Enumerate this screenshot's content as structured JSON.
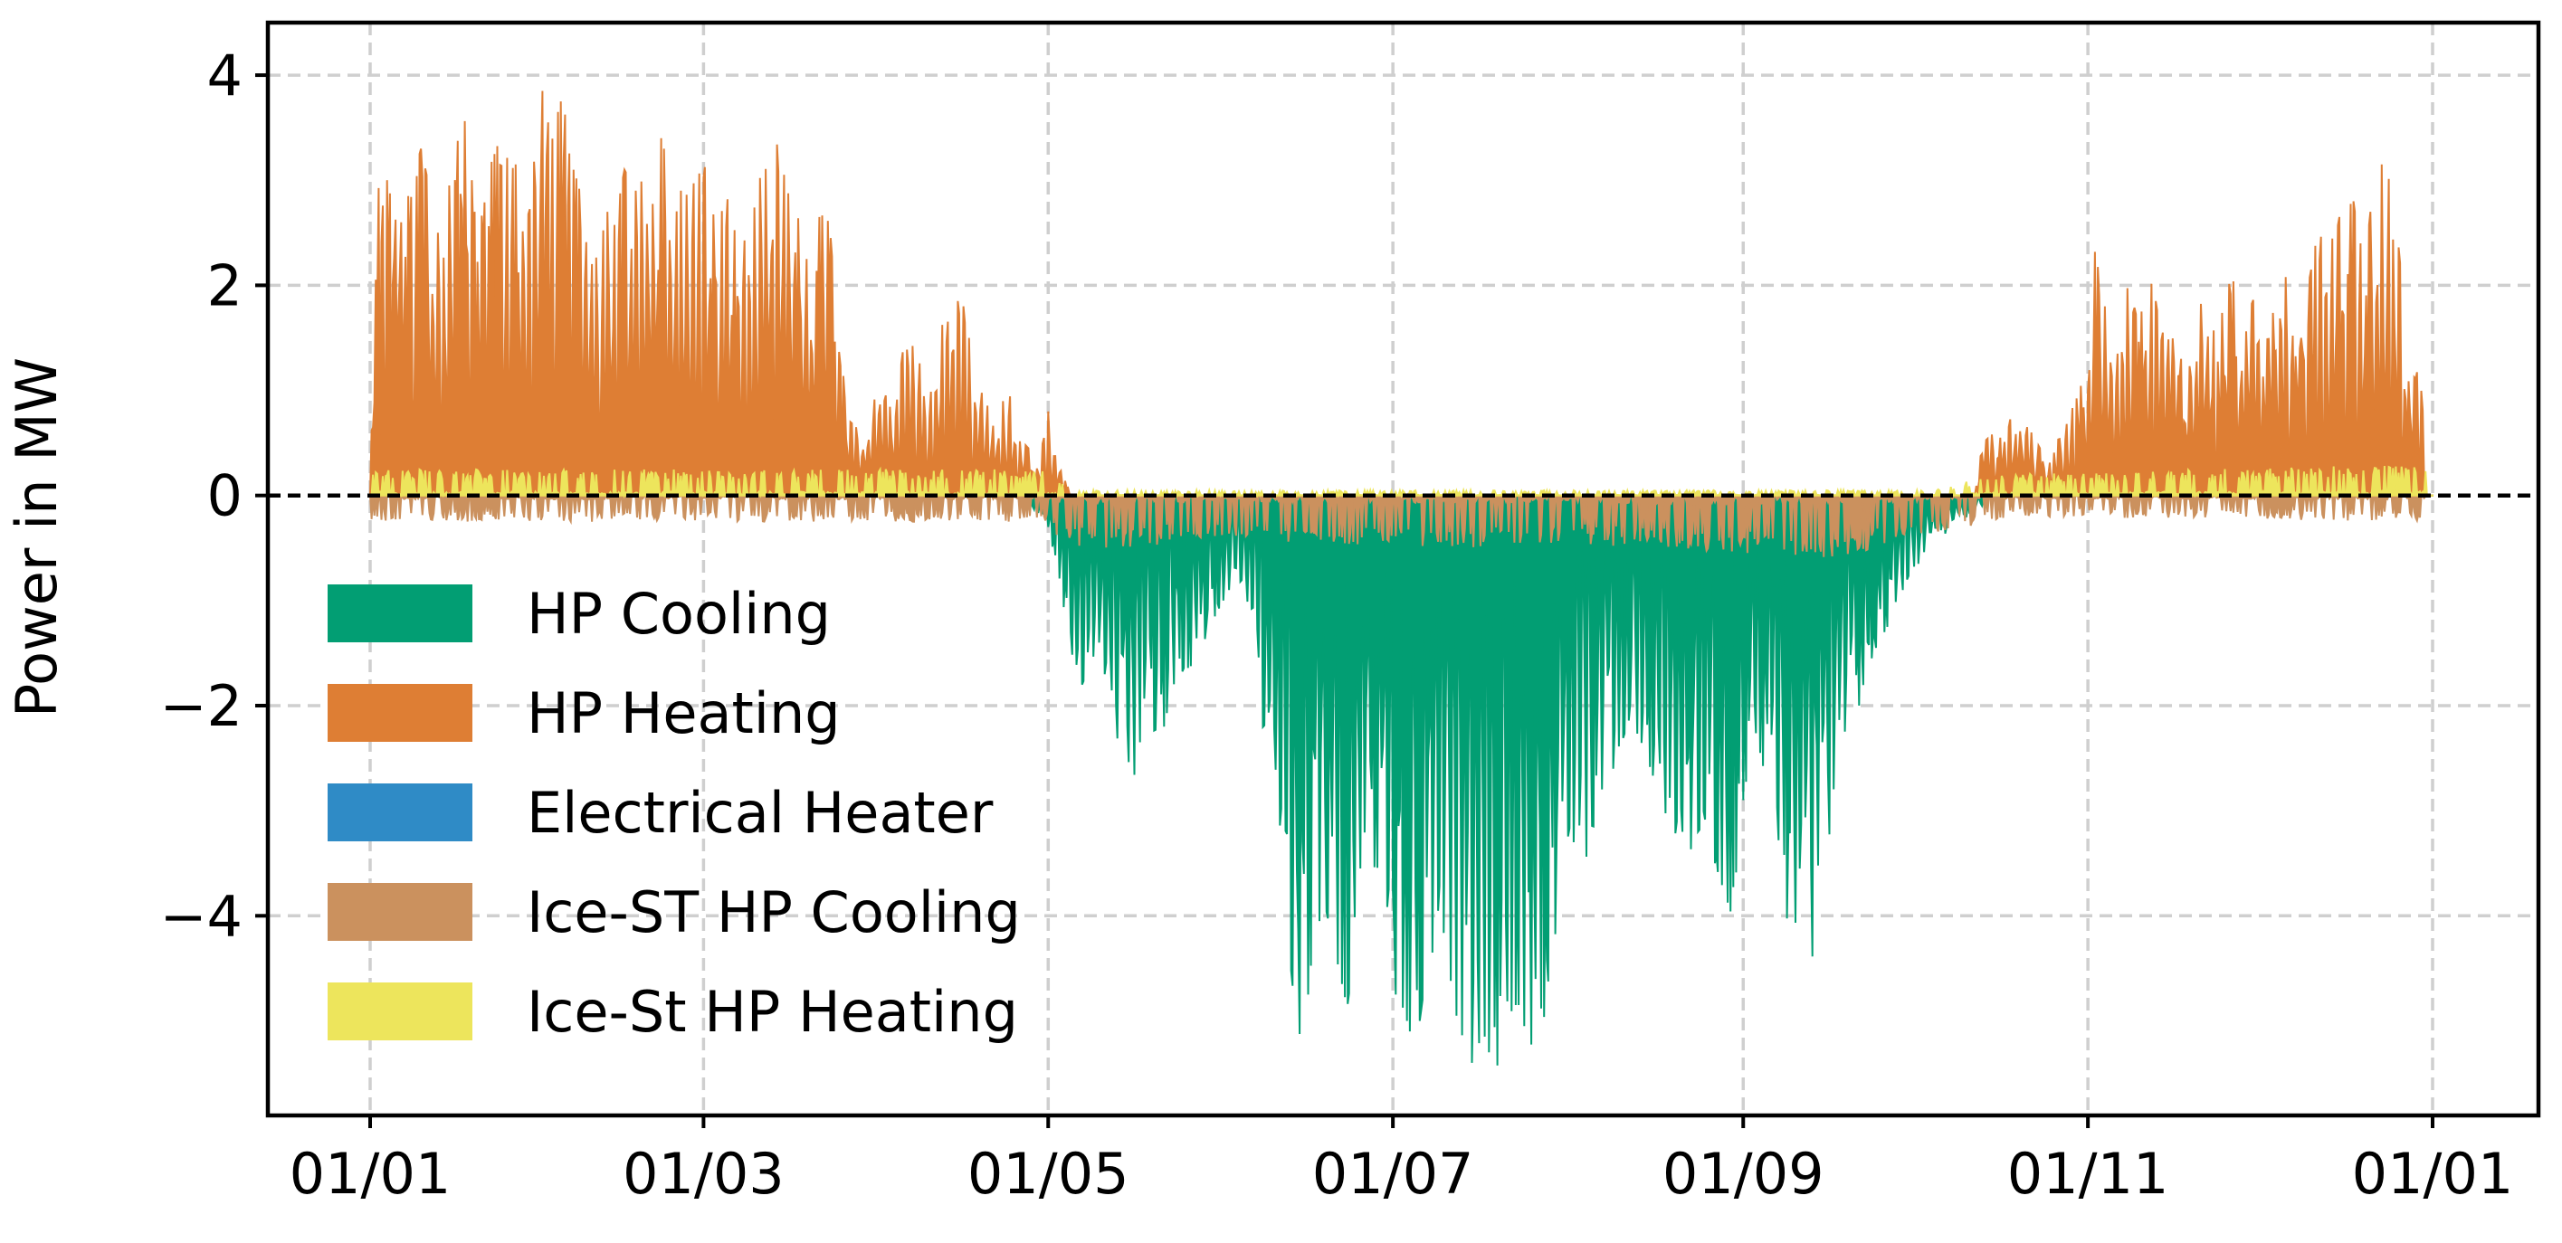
{
  "chart_data": {
    "type": "area",
    "xlabel": "",
    "ylabel": "Power in MW",
    "xlim": [
      "2021-01-01",
      "2022-01-01"
    ],
    "ylim": [
      -5.9,
      4.5
    ],
    "x_ticks": [
      "01/01",
      "01/03",
      "01/05",
      "01/07",
      "01/09",
      "01/11",
      "01/01"
    ],
    "x_tick_dates": [
      "2021-01-01",
      "2021-03-01",
      "2021-05-01",
      "2021-07-01",
      "2021-09-01",
      "2021-11-01",
      "2022-01-01"
    ],
    "y_ticks": [
      4,
      2,
      0,
      -2,
      -4
    ],
    "y_tick_labels": [
      "4",
      "2",
      "0",
      "−2",
      "−4"
    ],
    "grid": true,
    "zero_line": "dashed",
    "legend_position": "lower-left",
    "colors": {
      "hp_cooling": "#029e73",
      "hp_heating": "#de7e34",
      "electrical_heater": "#2f8bc6",
      "ice_st_hp_cooling": "#cb915e",
      "ice_st_hp_heating": "#ede55c"
    },
    "series": [
      {
        "name": "HP Cooling",
        "color": "#029e73",
        "peak_envelope": [
          [
            "2021-04-25",
            0
          ],
          [
            "2021-04-28",
            -0.1
          ],
          [
            "2021-05-01",
            -0.3
          ],
          [
            "2021-05-03",
            -0.8
          ],
          [
            "2021-05-05",
            -1.5
          ],
          [
            "2021-05-07",
            -1.8
          ],
          [
            "2021-05-10",
            -1.4
          ],
          [
            "2021-05-12",
            -2.0
          ],
          [
            "2021-05-14",
            -2.5
          ],
          [
            "2021-05-16",
            -2.7
          ],
          [
            "2021-05-19",
            -2.2
          ],
          [
            "2021-05-21",
            -2.3
          ],
          [
            "2021-05-24",
            -1.7
          ],
          [
            "2021-05-27",
            -1.6
          ],
          [
            "2021-05-30",
            -1.2
          ],
          [
            "2021-06-02",
            -0.9
          ],
          [
            "2021-06-05",
            -1.0
          ],
          [
            "2021-06-07",
            -1.8
          ],
          [
            "2021-06-09",
            -2.8
          ],
          [
            "2021-06-11",
            -3.5
          ],
          [
            "2021-06-13",
            -4.6
          ],
          [
            "2021-06-15",
            -5.3
          ],
          [
            "2021-06-17",
            -4.2
          ],
          [
            "2021-06-19",
            -3.9
          ],
          [
            "2021-06-21",
            -4.4
          ],
          [
            "2021-06-23",
            -4.9
          ],
          [
            "2021-06-25",
            -3.6
          ],
          [
            "2021-06-27",
            -3.2
          ],
          [
            "2021-06-29",
            -4.1
          ],
          [
            "2021-07-01",
            -4.7
          ],
          [
            "2021-07-03",
            -4.9
          ],
          [
            "2021-07-05",
            -5.3
          ],
          [
            "2021-07-07",
            -4.5
          ],
          [
            "2021-07-09",
            -4.2
          ],
          [
            "2021-07-11",
            -4.7
          ],
          [
            "2021-07-13",
            -5.1
          ],
          [
            "2021-07-15",
            -5.4
          ],
          [
            "2021-07-17",
            -5.1
          ],
          [
            "2021-07-19",
            -5.5
          ],
          [
            "2021-07-21",
            -5.2
          ],
          [
            "2021-07-23",
            -4.8
          ],
          [
            "2021-07-25",
            -5.2
          ],
          [
            "2021-07-27",
            -5.3
          ],
          [
            "2021-07-29",
            -4.4
          ],
          [
            "2021-07-31",
            -3.8
          ],
          [
            "2021-08-02",
            -3.3
          ],
          [
            "2021-08-04",
            -3.6
          ],
          [
            "2021-08-06",
            -3.0
          ],
          [
            "2021-08-09",
            -2.6
          ],
          [
            "2021-08-12",
            -2.1
          ],
          [
            "2021-08-15",
            -2.5
          ],
          [
            "2021-08-18",
            -3.0
          ],
          [
            "2021-08-21",
            -3.6
          ],
          [
            "2021-08-24",
            -3.2
          ],
          [
            "2021-08-27",
            -3.5
          ],
          [
            "2021-08-30",
            -4.0
          ],
          [
            "2021-09-01",
            -2.9
          ],
          [
            "2021-09-03",
            -2.2
          ],
          [
            "2021-09-05",
            -2.7
          ],
          [
            "2021-09-07",
            -3.5
          ],
          [
            "2021-09-09",
            -4.1
          ],
          [
            "2021-09-11",
            -4.3
          ],
          [
            "2021-09-13",
            -4.5
          ],
          [
            "2021-09-15",
            -3.6
          ],
          [
            "2021-09-18",
            -2.7
          ],
          [
            "2021-09-21",
            -2.1
          ],
          [
            "2021-09-24",
            -1.5
          ],
          [
            "2021-09-27",
            -1.2
          ],
          [
            "2021-09-30",
            -0.8
          ],
          [
            "2021-10-04",
            -0.5
          ],
          [
            "2021-10-08",
            -0.3
          ],
          [
            "2021-10-12",
            -0.15
          ],
          [
            "2021-10-16",
            0
          ]
        ]
      },
      {
        "name": "HP Heating",
        "color": "#de7e34",
        "peak_envelope": [
          [
            "2021-01-01",
            0
          ],
          [
            "2021-01-02",
            2.9
          ],
          [
            "2021-01-04",
            3.0
          ],
          [
            "2021-01-06",
            2.5
          ],
          [
            "2021-01-08",
            2.9
          ],
          [
            "2021-01-10",
            3.3
          ],
          [
            "2021-01-12",
            2.8
          ],
          [
            "2021-01-14",
            2.6
          ],
          [
            "2021-01-16",
            3.3
          ],
          [
            "2021-01-18",
            3.6
          ],
          [
            "2021-01-20",
            2.4
          ],
          [
            "2021-01-22",
            3.1
          ],
          [
            "2021-01-24",
            3.4
          ],
          [
            "2021-01-26",
            3.1
          ],
          [
            "2021-01-29",
            3.3
          ],
          [
            "2021-01-31",
            4.0
          ],
          [
            "2021-02-02",
            3.4
          ],
          [
            "2021-02-04",
            3.8
          ],
          [
            "2021-02-06",
            3.1
          ],
          [
            "2021-02-09",
            2.6
          ],
          [
            "2021-02-11",
            2.9
          ],
          [
            "2021-02-13",
            2.5
          ],
          [
            "2021-02-15",
            3.1
          ],
          [
            "2021-02-17",
            2.9
          ],
          [
            "2021-02-19",
            3.2
          ],
          [
            "2021-02-21",
            3.5
          ],
          [
            "2021-02-23",
            3.1
          ],
          [
            "2021-02-25",
            2.9
          ],
          [
            "2021-02-27",
            3.3
          ],
          [
            "2021-03-01",
            3.2
          ],
          [
            "2021-03-03",
            2.6
          ],
          [
            "2021-03-05",
            2.9
          ],
          [
            "2021-03-07",
            2.4
          ],
          [
            "2021-03-09",
            2.7
          ],
          [
            "2021-03-11",
            3.3
          ],
          [
            "2021-03-13",
            3.7
          ],
          [
            "2021-03-15",
            3.1
          ],
          [
            "2021-03-17",
            2.9
          ],
          [
            "2021-03-19",
            2.2
          ],
          [
            "2021-03-21",
            2.6
          ],
          [
            "2021-03-23",
            2.8
          ],
          [
            "2021-03-25",
            1.4
          ],
          [
            "2021-03-27",
            0.7
          ],
          [
            "2021-03-29",
            0.6
          ],
          [
            "2021-03-31",
            0.9
          ],
          [
            "2021-04-02",
            1.2
          ],
          [
            "2021-04-04",
            0.8
          ],
          [
            "2021-04-06",
            1.7
          ],
          [
            "2021-04-08",
            1.4
          ],
          [
            "2021-04-10",
            0.9
          ],
          [
            "2021-04-12",
            1.6
          ],
          [
            "2021-04-14",
            1.9
          ],
          [
            "2021-04-16",
            1.8
          ],
          [
            "2021-04-18",
            1.2
          ],
          [
            "2021-04-20",
            0.9
          ],
          [
            "2021-04-22",
            0.8
          ],
          [
            "2021-04-24",
            1.0
          ],
          [
            "2021-04-26",
            0.6
          ],
          [
            "2021-04-29",
            0.3
          ],
          [
            "2021-05-01",
            0.8
          ],
          [
            "2021-05-03",
            0.3
          ],
          [
            "2021-05-05",
            0
          ],
          [
            "2021-10-12",
            0
          ],
          [
            "2021-10-14",
            0.8
          ],
          [
            "2021-10-16",
            0.5
          ],
          [
            "2021-10-19",
            0.8
          ],
          [
            "2021-10-22",
            0.6
          ],
          [
            "2021-10-25",
            0.3
          ],
          [
            "2021-10-28",
            0.7
          ],
          [
            "2021-11-01",
            1.2
          ],
          [
            "2021-11-02",
            2.4
          ],
          [
            "2021-11-04",
            1.8
          ],
          [
            "2021-11-06",
            1.3
          ],
          [
            "2021-11-08",
            2.1
          ],
          [
            "2021-11-10",
            1.6
          ],
          [
            "2021-11-12",
            2.2
          ],
          [
            "2021-11-14",
            1.5
          ],
          [
            "2021-11-16",
            1.9
          ],
          [
            "2021-11-18",
            1.1
          ],
          [
            "2021-11-20",
            1.8
          ],
          [
            "2021-11-22",
            2.0
          ],
          [
            "2021-11-24",
            1.4
          ],
          [
            "2021-11-26",
            2.3
          ],
          [
            "2021-11-28",
            1.6
          ],
          [
            "2021-11-30",
            2.4
          ],
          [
            "2021-12-02",
            1.3
          ],
          [
            "2021-12-04",
            1.8
          ],
          [
            "2021-12-06",
            2.2
          ],
          [
            "2021-12-08",
            1.2
          ],
          [
            "2021-12-10",
            2.0
          ],
          [
            "2021-12-12",
            2.6
          ],
          [
            "2021-12-14",
            2.5
          ],
          [
            "2021-12-16",
            2.7
          ],
          [
            "2021-12-18",
            2.8
          ],
          [
            "2021-12-20",
            2.2
          ],
          [
            "2021-12-22",
            3.2
          ],
          [
            "2021-12-24",
            3.1
          ],
          [
            "2021-12-26",
            2.4
          ],
          [
            "2021-12-28",
            0.9
          ],
          [
            "2021-12-30",
            1.5
          ],
          [
            "2021-12-31",
            0
          ]
        ]
      },
      {
        "name": "Electrical Heater",
        "color": "#2f8bc6",
        "peak_envelope": []
      },
      {
        "name": "Ice-ST HP Cooling",
        "color": "#cb915e",
        "peak_envelope": [
          [
            "2021-01-01",
            -0.25
          ],
          [
            "2021-04-30",
            -0.25
          ],
          [
            "2021-05-05",
            -0.5
          ],
          [
            "2021-05-15",
            -0.5
          ],
          [
            "2021-06-01",
            -0.4
          ],
          [
            "2021-06-15",
            -0.45
          ],
          [
            "2021-07-01",
            -0.5
          ],
          [
            "2021-07-15",
            -0.5
          ],
          [
            "2021-08-01",
            -0.45
          ],
          [
            "2021-08-15",
            -0.5
          ],
          [
            "2021-09-01",
            -0.55
          ],
          [
            "2021-09-15",
            -0.6
          ],
          [
            "2021-10-01",
            -0.45
          ],
          [
            "2021-10-10",
            -0.3
          ],
          [
            "2021-10-20",
            -0.2
          ],
          [
            "2021-12-31",
            -0.25
          ]
        ]
      },
      {
        "name": "Ice-St HP Heating",
        "color": "#ede55c",
        "peak_envelope": [
          [
            "2021-01-01",
            0.25
          ],
          [
            "2021-04-30",
            0.25
          ],
          [
            "2021-05-05",
            0.05
          ],
          [
            "2021-10-05",
            0.05
          ],
          [
            "2021-10-15",
            0.2
          ],
          [
            "2021-12-31",
            0.3
          ]
        ]
      }
    ]
  }
}
